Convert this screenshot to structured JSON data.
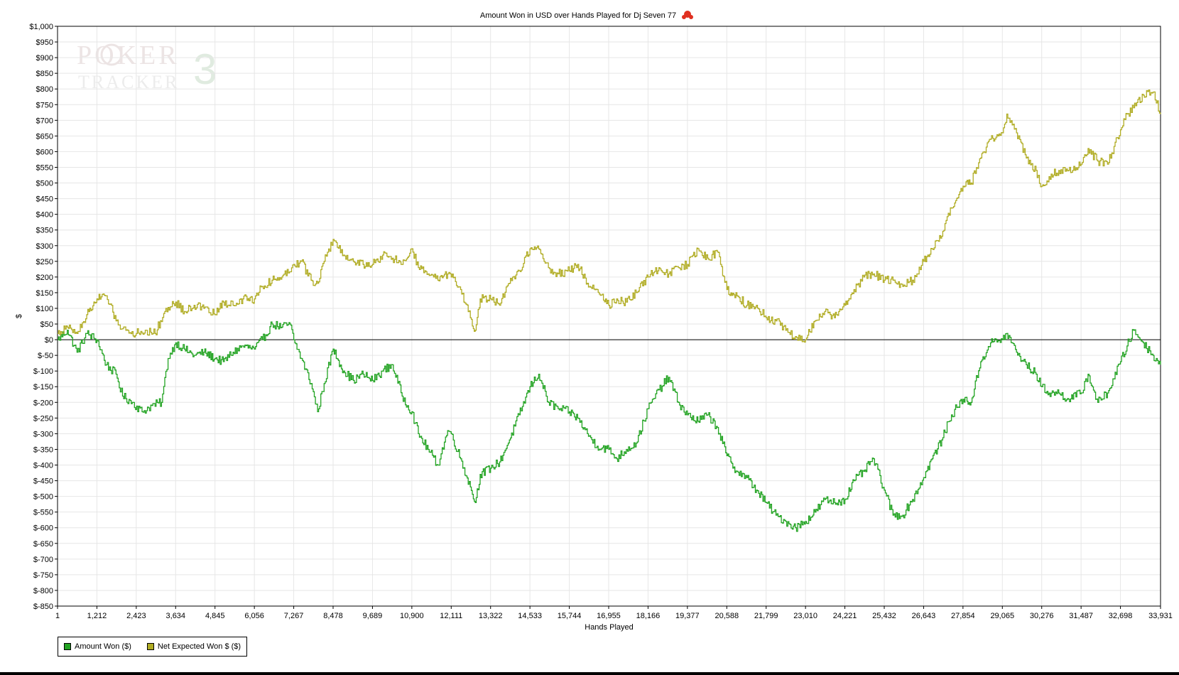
{
  "chart_data": {
    "type": "line",
    "title": "Amount Won in USD over Hands Played for Dj Seven 77",
    "xlabel": "Hands Played",
    "ylabel": "$",
    "xlim": [
      1,
      33931
    ],
    "ylim": [
      -850,
      1000
    ],
    "x_ticks": [
      1,
      1212,
      2423,
      3634,
      4845,
      6056,
      7267,
      8478,
      9689,
      10900,
      12111,
      13322,
      14533,
      15744,
      16955,
      18166,
      19377,
      20588,
      21799,
      23010,
      24221,
      25432,
      26643,
      27854,
      29065,
      30276,
      31487,
      32698,
      33931
    ],
    "x_tick_labels": [
      "1",
      "1,212",
      "2,423",
      "3,634",
      "4,845",
      "6,056",
      "7,267",
      "8,478",
      "9,689",
      "10,900",
      "12,111",
      "13,322",
      "14,533",
      "15,744",
      "16,955",
      "18,166",
      "19,377",
      "20,588",
      "21,799",
      "23,010",
      "24,221",
      "25,432",
      "26,643",
      "27,854",
      "29,065",
      "30,276",
      "31,487",
      "32,698",
      "33,931"
    ],
    "y_ticks": [
      1000,
      950,
      900,
      850,
      800,
      750,
      700,
      650,
      600,
      550,
      500,
      450,
      400,
      350,
      300,
      250,
      200,
      150,
      100,
      50,
      0,
      -50,
      -100,
      -150,
      -200,
      -250,
      -300,
      -350,
      -400,
      -450,
      -500,
      -550,
      -600,
      -650,
      -700,
      -750,
      -800,
      -850
    ],
    "y_tick_labels": [
      "$1,000",
      "$950",
      "$900",
      "$850",
      "$800",
      "$750",
      "$700",
      "$650",
      "$600",
      "$550",
      "$500",
      "$450",
      "$400",
      "$350",
      "$300",
      "$250",
      "$200",
      "$150",
      "$100",
      "$50",
      "$0",
      "$-50",
      "$-100",
      "$-150",
      "$-200",
      "$-250",
      "$-300",
      "$-350",
      "$-400",
      "$-450",
      "$-500",
      "$-550",
      "$-600",
      "$-650",
      "$-700",
      "$-750",
      "$-800",
      "$-850"
    ],
    "grid": true,
    "zero_line": true,
    "legend_position": "bottom-left",
    "series": [
      {
        "name": "Amount Won ($)",
        "color": "#22a322",
        "points": [
          [
            1,
            0
          ],
          [
            300,
            30
          ],
          [
            600,
            -40
          ],
          [
            900,
            20
          ],
          [
            1212,
            0
          ],
          [
            1500,
            -80
          ],
          [
            1800,
            -110
          ],
          [
            2000,
            -180
          ],
          [
            2300,
            -200
          ],
          [
            2600,
            -230
          ],
          [
            2900,
            -210
          ],
          [
            3200,
            -200
          ],
          [
            3400,
            -60
          ],
          [
            3634,
            -10
          ],
          [
            3900,
            -30
          ],
          [
            4200,
            -50
          ],
          [
            4500,
            -40
          ],
          [
            4845,
            -60
          ],
          [
            5100,
            -70
          ],
          [
            5400,
            -40
          ],
          [
            5700,
            -20
          ],
          [
            6056,
            -30
          ],
          [
            6300,
            0
          ],
          [
            6600,
            50
          ],
          [
            6900,
            40
          ],
          [
            7150,
            50
          ],
          [
            7267,
            0
          ],
          [
            7500,
            -60
          ],
          [
            7800,
            -140
          ],
          [
            8000,
            -230
          ],
          [
            8200,
            -140
          ],
          [
            8478,
            -30
          ],
          [
            8800,
            -100
          ],
          [
            9100,
            -130
          ],
          [
            9400,
            -110
          ],
          [
            9689,
            -130
          ],
          [
            10000,
            -100
          ],
          [
            10300,
            -80
          ],
          [
            10600,
            -180
          ],
          [
            10900,
            -230
          ],
          [
            11100,
            -300
          ],
          [
            11400,
            -350
          ],
          [
            11700,
            -400
          ],
          [
            12000,
            -290
          ],
          [
            12111,
            -300
          ],
          [
            12400,
            -380
          ],
          [
            12700,
            -470
          ],
          [
            12850,
            -520
          ],
          [
            13000,
            -430
          ],
          [
            13322,
            -410
          ],
          [
            13600,
            -390
          ],
          [
            13900,
            -320
          ],
          [
            14200,
            -240
          ],
          [
            14533,
            -150
          ],
          [
            14800,
            -110
          ],
          [
            15100,
            -200
          ],
          [
            15400,
            -220
          ],
          [
            15744,
            -230
          ],
          [
            16000,
            -250
          ],
          [
            16300,
            -300
          ],
          [
            16600,
            -340
          ],
          [
            16955,
            -350
          ],
          [
            17200,
            -380
          ],
          [
            17500,
            -350
          ],
          [
            17800,
            -330
          ],
          [
            18166,
            -220
          ],
          [
            18500,
            -160
          ],
          [
            18800,
            -120
          ],
          [
            19100,
            -200
          ],
          [
            19377,
            -240
          ],
          [
            19700,
            -260
          ],
          [
            20000,
            -240
          ],
          [
            20300,
            -280
          ],
          [
            20588,
            -370
          ],
          [
            20900,
            -420
          ],
          [
            21200,
            -440
          ],
          [
            21500,
            -480
          ],
          [
            21799,
            -520
          ],
          [
            22100,
            -560
          ],
          [
            22400,
            -580
          ],
          [
            22700,
            -600
          ],
          [
            23010,
            -580
          ],
          [
            23300,
            -550
          ],
          [
            23600,
            -510
          ],
          [
            23900,
            -520
          ],
          [
            24221,
            -510
          ],
          [
            24500,
            -450
          ],
          [
            24800,
            -420
          ],
          [
            25100,
            -380
          ],
          [
            25432,
            -480
          ],
          [
            25700,
            -560
          ],
          [
            26000,
            -560
          ],
          [
            26300,
            -510
          ],
          [
            26643,
            -440
          ],
          [
            26900,
            -380
          ],
          [
            27200,
            -320
          ],
          [
            27500,
            -240
          ],
          [
            27854,
            -190
          ],
          [
            28100,
            -200
          ],
          [
            28400,
            -70
          ],
          [
            28700,
            -10
          ],
          [
            29065,
            0
          ],
          [
            29200,
            20
          ],
          [
            29500,
            -40
          ],
          [
            29800,
            -80
          ],
          [
            30100,
            -110
          ],
          [
            30276,
            -150
          ],
          [
            30500,
            -170
          ],
          [
            30800,
            -170
          ],
          [
            31100,
            -190
          ],
          [
            31487,
            -170
          ],
          [
            31700,
            -110
          ],
          [
            32000,
            -200
          ],
          [
            32300,
            -170
          ],
          [
            32698,
            -70
          ],
          [
            32900,
            -20
          ],
          [
            33100,
            30
          ],
          [
            33400,
            -10
          ],
          [
            33700,
            -50
          ],
          [
            33931,
            -80
          ]
        ]
      },
      {
        "name": "Net Expected Won $ ($)",
        "color": "#b0ac23",
        "points": [
          [
            1,
            20
          ],
          [
            300,
            40
          ],
          [
            600,
            20
          ],
          [
            900,
            80
          ],
          [
            1212,
            130
          ],
          [
            1500,
            140
          ],
          [
            1800,
            60
          ],
          [
            2100,
            30
          ],
          [
            2423,
            20
          ],
          [
            2700,
            30
          ],
          [
            3000,
            20
          ],
          [
            3300,
            90
          ],
          [
            3634,
            120
          ],
          [
            3900,
            90
          ],
          [
            4200,
            110
          ],
          [
            4500,
            100
          ],
          [
            4845,
            80
          ],
          [
            5100,
            120
          ],
          [
            5400,
            110
          ],
          [
            5700,
            130
          ],
          [
            6056,
            130
          ],
          [
            6300,
            170
          ],
          [
            6600,
            190
          ],
          [
            6900,
            200
          ],
          [
            7267,
            240
          ],
          [
            7500,
            250
          ],
          [
            7800,
            190
          ],
          [
            8000,
            180
          ],
          [
            8200,
            250
          ],
          [
            8478,
            320
          ],
          [
            8800,
            270
          ],
          [
            9100,
            250
          ],
          [
            9400,
            240
          ],
          [
            9689,
            240
          ],
          [
            10000,
            270
          ],
          [
            10300,
            260
          ],
          [
            10600,
            240
          ],
          [
            10900,
            290
          ],
          [
            11100,
            230
          ],
          [
            11400,
            210
          ],
          [
            11700,
            190
          ],
          [
            12000,
            210
          ],
          [
            12111,
            200
          ],
          [
            12400,
            160
          ],
          [
            12700,
            70
          ],
          [
            12850,
            30
          ],
          [
            13000,
            130
          ],
          [
            13322,
            130
          ],
          [
            13600,
            110
          ],
          [
            13900,
            180
          ],
          [
            14200,
            220
          ],
          [
            14533,
            290
          ],
          [
            14800,
            290
          ],
          [
            15100,
            230
          ],
          [
            15400,
            210
          ],
          [
            15744,
            220
          ],
          [
            16000,
            240
          ],
          [
            16300,
            180
          ],
          [
            16600,
            160
          ],
          [
            16955,
            110
          ],
          [
            17200,
            130
          ],
          [
            17500,
            120
          ],
          [
            17800,
            150
          ],
          [
            18166,
            200
          ],
          [
            18500,
            230
          ],
          [
            18800,
            210
          ],
          [
            19100,
            230
          ],
          [
            19377,
            240
          ],
          [
            19700,
            290
          ],
          [
            20000,
            260
          ],
          [
            20300,
            280
          ],
          [
            20588,
            160
          ],
          [
            20900,
            140
          ],
          [
            21200,
            110
          ],
          [
            21500,
            110
          ],
          [
            21799,
            70
          ],
          [
            22100,
            60
          ],
          [
            22400,
            30
          ],
          [
            22700,
            10
          ],
          [
            23010,
            0
          ],
          [
            23300,
            60
          ],
          [
            23600,
            90
          ],
          [
            23900,
            70
          ],
          [
            24221,
            110
          ],
          [
            24500,
            160
          ],
          [
            24800,
            200
          ],
          [
            25100,
            210
          ],
          [
            25432,
            190
          ],
          [
            25700,
            190
          ],
          [
            26000,
            170
          ],
          [
            26300,
            190
          ],
          [
            26643,
            250
          ],
          [
            26900,
            290
          ],
          [
            27200,
            330
          ],
          [
            27500,
            420
          ],
          [
            27854,
            490
          ],
          [
            28100,
            500
          ],
          [
            28400,
            580
          ],
          [
            28700,
            640
          ],
          [
            29065,
            660
          ],
          [
            29200,
            720
          ],
          [
            29500,
            660
          ],
          [
            29800,
            580
          ],
          [
            30100,
            540
          ],
          [
            30276,
            490
          ],
          [
            30500,
            520
          ],
          [
            30800,
            540
          ],
          [
            31100,
            540
          ],
          [
            31487,
            560
          ],
          [
            31700,
            610
          ],
          [
            32000,
            570
          ],
          [
            32300,
            560
          ],
          [
            32698,
            670
          ],
          [
            32900,
            720
          ],
          [
            33100,
            740
          ],
          [
            33400,
            780
          ],
          [
            33700,
            790
          ],
          [
            33931,
            720
          ]
        ]
      }
    ]
  }
}
